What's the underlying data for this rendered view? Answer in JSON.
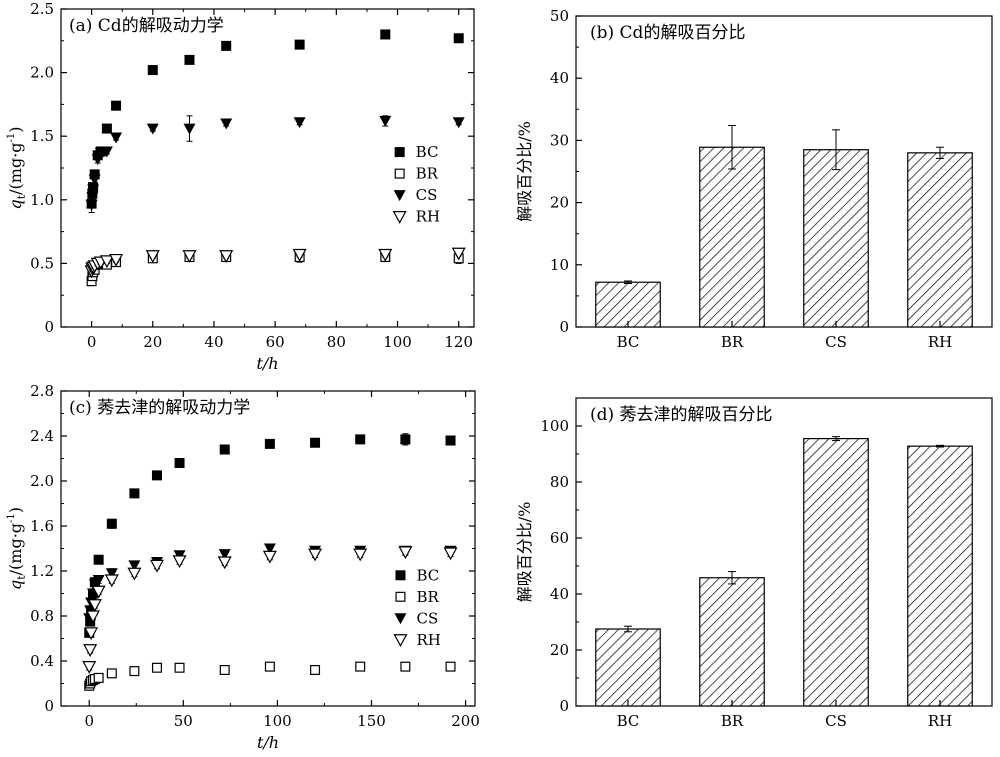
{
  "chart_data": [
    {
      "type": "scatter",
      "title": "(a) Cd的解吸动力学",
      "xlabel": "t/h",
      "ylabel": "q_t/(mg·g^-1)",
      "ylabel_main": "q",
      "ylabel_sub": "t",
      "ylabel_unit": "/(mg·g",
      "ylabel_sup": "-1",
      "ylabel_close": ")",
      "xlim": [
        -10,
        125
      ],
      "ylim": [
        0,
        2.5
      ],
      "xticks": [
        0,
        20,
        40,
        60,
        80,
        100,
        120
      ],
      "yticks": [
        0,
        0.5,
        1.0,
        1.5,
        2.0,
        2.5
      ],
      "yticklabels": [
        "0",
        "0.5",
        "1.0",
        "1.5",
        "2.0",
        "2.5"
      ],
      "legend_position": "right-center",
      "series": [
        {
          "name": "BC",
          "marker": "square-filled",
          "x": [
            0,
            0.25,
            0.5,
            1,
            2,
            3,
            5,
            8,
            20,
            32,
            44,
            68,
            96,
            120
          ],
          "y": [
            0.97,
            1.05,
            1.1,
            1.2,
            1.35,
            1.38,
            1.56,
            1.74,
            2.02,
            2.1,
            2.21,
            2.22,
            2.3,
            2.27
          ],
          "err": [
            0.03,
            0.03,
            0.03,
            0.03,
            0.02,
            0.02,
            0.02,
            0.02,
            0.02,
            0.02,
            0.02,
            0.02,
            0.02,
            0.02
          ]
        },
        {
          "name": "BR",
          "marker": "square-open",
          "x": [
            0,
            0.25,
            0.5,
            1,
            2,
            3,
            5,
            8,
            20,
            32,
            44,
            68,
            96,
            120
          ],
          "y": [
            0.36,
            0.4,
            0.43,
            0.45,
            0.49,
            0.5,
            0.49,
            0.51,
            0.54,
            0.55,
            0.55,
            0.55,
            0.55,
            0.54
          ],
          "err": [
            0.02,
            0.02,
            0.02,
            0.02,
            0.02,
            0.02,
            0.03,
            0.03,
            0.03,
            0.03,
            0.03,
            0.04,
            0.03,
            0.04
          ]
        },
        {
          "name": "CS",
          "marker": "triangle-down-filled",
          "x": [
            0,
            0.25,
            0.5,
            1,
            2,
            3,
            5,
            8,
            20,
            32,
            44,
            68,
            96,
            120
          ],
          "y": [
            0.96,
            1.02,
            1.08,
            1.16,
            1.32,
            1.37,
            1.38,
            1.49,
            1.56,
            1.56,
            1.6,
            1.61,
            1.62,
            1.61
          ],
          "err": [
            0.06,
            0.05,
            0.05,
            0.04,
            0.03,
            0.03,
            0.02,
            0.02,
            0.02,
            0.1,
            0.02,
            0.02,
            0.04,
            0.02
          ]
        },
        {
          "name": "RH",
          "marker": "triangle-down-open",
          "x": [
            0,
            0.25,
            0.5,
            1,
            2,
            3,
            5,
            8,
            20,
            32,
            44,
            68,
            96,
            120
          ],
          "y": [
            0.44,
            0.46,
            0.47,
            0.48,
            0.5,
            0.51,
            0.52,
            0.53,
            0.56,
            0.56,
            0.56,
            0.57,
            0.57,
            0.58
          ],
          "err": [
            0.02,
            0.02,
            0.02,
            0.02,
            0.02,
            0.02,
            0.02,
            0.02,
            0.02,
            0.02,
            0.02,
            0.02,
            0.02,
            0.02
          ]
        }
      ]
    },
    {
      "type": "bar",
      "title": "(b) Cd的解吸百分比",
      "xlabel": "",
      "ylabel": "解吸百分比/%",
      "categories": [
        "BC",
        "BR",
        "CS",
        "RH"
      ],
      "values": [
        7.2,
        28.9,
        28.5,
        28.0
      ],
      "err": [
        0.2,
        3.5,
        3.2,
        0.9
      ],
      "ylim": [
        0,
        50
      ],
      "yticks": [
        0,
        10,
        20,
        30,
        40,
        50
      ],
      "fill": "hatched"
    },
    {
      "type": "scatter",
      "title": "(c) 莠去津的解吸动力学",
      "xlabel": "t/h",
      "ylabel": "q_t/(mg·g^-1)",
      "ylabel_main": "q",
      "ylabel_sub": "t",
      "ylabel_unit": "/(mg·g",
      "ylabel_sup": "-1",
      "ylabel_close": ")",
      "xlim": [
        -15,
        205
      ],
      "ylim": [
        0,
        2.8
      ],
      "xticks": [
        0,
        50,
        100,
        150,
        200
      ],
      "yticks": [
        0,
        0.4,
        0.8,
        1.2,
        1.6,
        2.0,
        2.4,
        2.8
      ],
      "yticklabels": [
        "0",
        "0.4",
        "0.8",
        "1.2",
        "1.6",
        "2.0",
        "2.4",
        "2.8"
      ],
      "legend_position": "right-center",
      "series": [
        {
          "name": "BC",
          "marker": "square-filled",
          "x": [
            0,
            0.5,
            1,
            2,
            3,
            5,
            12,
            24,
            36,
            48,
            72,
            96,
            120,
            144,
            168,
            192
          ],
          "y": [
            0.65,
            0.75,
            0.85,
            1.0,
            1.1,
            1.3,
            1.62,
            1.89,
            2.05,
            2.16,
            2.28,
            2.33,
            2.34,
            2.37,
            2.37,
            2.36
          ],
          "err": [
            0.03,
            0.03,
            0.03,
            0.03,
            0.03,
            0.03,
            0.04,
            0.03,
            0.03,
            0.03,
            0.04,
            0.03,
            0.03,
            0.03,
            0.05,
            0.04
          ]
        },
        {
          "name": "BR",
          "marker": "square-open",
          "x": [
            0,
            0.5,
            1,
            2,
            3,
            5,
            12,
            24,
            36,
            48,
            72,
            96,
            120,
            144,
            168,
            192
          ],
          "y": [
            0.18,
            0.2,
            0.22,
            0.23,
            0.24,
            0.25,
            0.29,
            0.31,
            0.34,
            0.34,
            0.32,
            0.35,
            0.32,
            0.35,
            0.35,
            0.35
          ],
          "err": [
            0.02,
            0.02,
            0.02,
            0.02,
            0.02,
            0.02,
            0.02,
            0.02,
            0.02,
            0.02,
            0.02,
            0.02,
            0.02,
            0.02,
            0.02,
            0.02
          ]
        },
        {
          "name": "CS",
          "marker": "triangle-down-filled",
          "x": [
            0,
            0.5,
            1,
            2,
            3,
            5,
            12,
            24,
            36,
            48,
            72,
            96,
            120,
            144,
            168,
            192
          ],
          "y": [
            0.78,
            0.85,
            0.92,
            1.0,
            1.08,
            1.12,
            1.18,
            1.25,
            1.28,
            1.34,
            1.35,
            1.4,
            1.38,
            1.38,
            1.38,
            1.38
          ],
          "err": [
            0.03,
            0.03,
            0.03,
            0.03,
            0.03,
            0.03,
            0.04,
            0.03,
            0.03,
            0.03,
            0.03,
            0.03,
            0.03,
            0.03,
            0.03,
            0.03
          ]
        },
        {
          "name": "RH",
          "marker": "triangle-down-open",
          "x": [
            0,
            0.5,
            1,
            2,
            3,
            5,
            12,
            24,
            36,
            48,
            72,
            96,
            120,
            144,
            168,
            192
          ],
          "y": [
            0.35,
            0.5,
            0.65,
            0.8,
            0.9,
            1.02,
            1.12,
            1.18,
            1.25,
            1.29,
            1.28,
            1.33,
            1.35,
            1.35,
            1.37,
            1.36
          ],
          "err": [
            0.03,
            0.03,
            0.03,
            0.03,
            0.03,
            0.03,
            0.03,
            0.03,
            0.03,
            0.03,
            0.03,
            0.03,
            0.03,
            0.03,
            0.03,
            0.03
          ]
        }
      ]
    },
    {
      "type": "bar",
      "title": "(d) 莠去津的解吸百分比",
      "xlabel": "",
      "ylabel": "解吸百分比/%",
      "categories": [
        "BC",
        "BR",
        "CS",
        "RH"
      ],
      "values": [
        27.5,
        45.8,
        95.5,
        92.8
      ],
      "err": [
        1.0,
        2.2,
        0.7,
        0.3
      ],
      "ylim": [
        0,
        110
      ],
      "yticks": [
        0,
        20,
        40,
        60,
        80,
        100
      ],
      "fill": "hatched"
    }
  ]
}
